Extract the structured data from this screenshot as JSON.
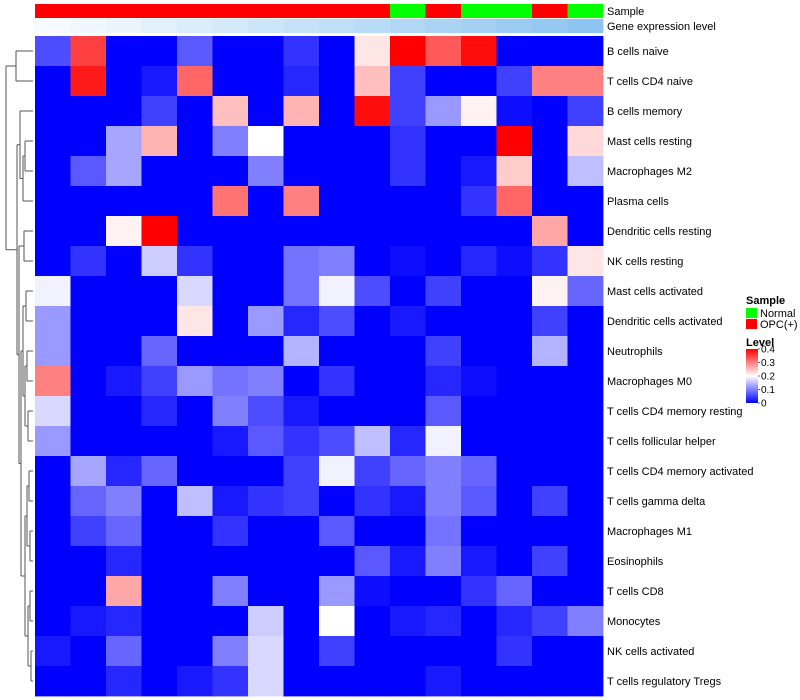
{
  "chart_data": {
    "type": "heatmap",
    "annotations": [
      {
        "name": "Sample",
        "values": [
          "OPC(+)",
          "OPC(+)",
          "OPC(+)",
          "OPC(+)",
          "OPC(+)",
          "OPC(+)",
          "OPC(+)",
          "OPC(+)",
          "OPC(+)",
          "OPC(+)",
          "Normal",
          "OPC(+)",
          "Normal",
          "Normal",
          "OPC(+)",
          "Normal"
        ]
      },
      {
        "name": "Gene expression level",
        "values": [
          0.0,
          0.05,
          0.1,
          0.15,
          0.2,
          0.25,
          0.3,
          0.35,
          0.4,
          0.45,
          0.5,
          0.55,
          0.6,
          0.65,
          0.7,
          0.75
        ]
      }
    ],
    "rows": [
      "B cells naive",
      "T cells CD4 naive",
      "B cells memory",
      "Mast cells resting",
      "Macrophages M2",
      "Plasma cells",
      "Dendritic cells resting",
      "NK cells resting",
      "Mast cells activated",
      "Dendritic cells activated",
      "Neutrophils",
      "Macrophages M0",
      "T cells CD4 memory resting",
      "T cells follicular helper",
      "T cells CD4 memory activated",
      "T cells gamma delta",
      "Macrophages M1",
      "Eosinophils",
      "T cells CD8",
      "Monocytes",
      "NK cells activated",
      "T cells regulatory  Tregs"
    ],
    "values": [
      [
        0.06,
        0.35,
        0,
        0,
        0.07,
        0,
        0,
        0.04,
        0,
        0.22,
        0.4,
        0.33,
        0.39,
        0,
        0,
        0
      ],
      [
        0,
        0.38,
        0,
        0.02,
        0.32,
        0,
        0,
        0.03,
        0,
        0.25,
        0.05,
        0,
        0,
        0.05,
        0.3,
        0.3
      ],
      [
        0,
        0,
        0,
        0.05,
        0,
        0.25,
        0,
        0.26,
        0,
        0.39,
        0.05,
        0.12,
        0.21,
        0.01,
        0,
        0.05
      ],
      [
        0,
        0,
        0.13,
        0.26,
        0,
        0.1,
        0.2,
        0,
        0,
        0,
        0.04,
        0,
        0,
        0.4,
        0,
        0.23
      ],
      [
        0,
        0.07,
        0.13,
        0,
        0,
        0,
        0.1,
        0,
        0,
        0,
        0.04,
        0,
        0.02,
        0.24,
        0,
        0.15
      ],
      [
        0,
        0,
        0,
        0,
        0,
        0.31,
        0,
        0.3,
        0,
        0,
        0,
        0,
        0.04,
        0.32,
        0,
        0
      ],
      [
        0,
        0,
        0.21,
        0.4,
        0,
        0,
        0,
        0,
        0,
        0,
        0,
        0,
        0,
        0,
        0.27,
        0
      ],
      [
        0,
        0.04,
        0,
        0.16,
        0.04,
        0,
        0,
        0.09,
        0.1,
        0,
        0.01,
        0,
        0.03,
        0.01,
        0.04,
        0.22
      ],
      [
        0.19,
        0,
        0,
        0,
        0.17,
        0,
        0,
        0.09,
        0.19,
        0.06,
        0,
        0.05,
        0,
        0,
        0.21,
        0.08
      ],
      [
        0.12,
        0,
        0,
        0,
        0.22,
        0,
        0.12,
        0.03,
        0.06,
        0,
        0.02,
        0,
        0,
        0,
        0.05,
        0
      ],
      [
        0.12,
        0,
        0,
        0.08,
        0,
        0,
        0,
        0.14,
        0,
        0,
        0,
        0.05,
        0,
        0,
        0.14,
        0
      ],
      [
        0.3,
        0,
        0.02,
        0.05,
        0.12,
        0.09,
        0.1,
        0,
        0.04,
        0,
        0,
        0.03,
        0.01,
        0,
        0,
        0
      ],
      [
        0.17,
        0,
        0,
        0.03,
        0,
        0.1,
        0.06,
        0.02,
        0,
        0,
        0,
        0.07,
        0,
        0,
        0,
        0
      ],
      [
        0.12,
        0,
        0,
        0,
        0,
        0.02,
        0.07,
        0.04,
        0.06,
        0.15,
        0.03,
        0.19,
        0,
        0,
        0,
        0
      ],
      [
        0,
        0.13,
        0.03,
        0.08,
        0,
        0,
        0,
        0.05,
        0.19,
        0.05,
        0.08,
        0.1,
        0.08,
        0,
        0,
        0
      ],
      [
        0,
        0.08,
        0.1,
        0,
        0.15,
        0.02,
        0.04,
        0.05,
        0,
        0.04,
        0.02,
        0.1,
        0.07,
        0,
        0.05,
        0
      ],
      [
        0,
        0.05,
        0.08,
        0,
        0,
        0.04,
        0,
        0,
        0.07,
        0,
        0,
        0.09,
        0,
        0,
        0,
        0
      ],
      [
        0,
        0,
        0.03,
        0,
        0,
        0,
        0,
        0,
        0,
        0.07,
        0.02,
        0.1,
        0.02,
        0,
        0.05,
        0
      ],
      [
        0,
        0,
        0.27,
        0,
        0,
        0.1,
        0,
        0,
        0.12,
        0.01,
        0,
        0,
        0.04,
        0.08,
        0,
        0
      ],
      [
        0,
        0.02,
        0.03,
        0,
        0,
        0,
        0.16,
        0,
        0.2,
        0,
        0.02,
        0.03,
        0,
        0.03,
        0.05,
        0.1
      ],
      [
        0.02,
        0,
        0.08,
        0,
        0,
        0.1,
        0.17,
        0,
        0.05,
        0,
        0,
        0,
        0,
        0.04,
        0,
        0
      ],
      [
        0,
        0,
        0.03,
        0,
        0.02,
        0.04,
        0.17,
        0,
        0,
        0,
        0,
        0.02,
        0,
        0,
        0,
        0
      ]
    ],
    "legend": {
      "sample_title": "Sample",
      "sample_items": [
        {
          "label": "Normal",
          "color": "#00ff00"
        },
        {
          "label": "OPC(+)",
          "color": "#ff0000"
        }
      ],
      "level_title": "Level",
      "level_ticks": [
        "0.4",
        "0.3",
        "0.2",
        "0.1",
        "0"
      ]
    },
    "colors": {
      "low": "#0000ff",
      "mid": "#ffffff",
      "high": "#ff0000",
      "ann_low": "#f7fbff",
      "ann_high": "#8ec5f0"
    },
    "color_range": [
      0,
      0.4
    ],
    "dendrogram": "left"
  }
}
